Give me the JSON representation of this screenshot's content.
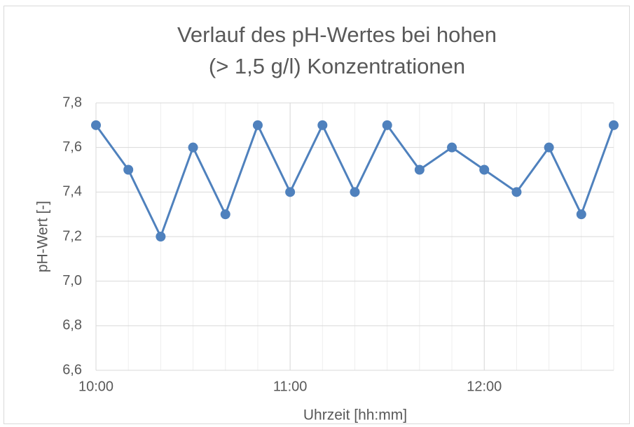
{
  "chart_data": {
    "type": "line",
    "title": [
      "Verlauf des pH-Wertes bei hohen",
      "(> 1,5 g/l) Konzentrationen"
    ],
    "xlabel": "Uhrzeit [hh:mm]",
    "ylabel": "pH-Wert [-]",
    "x": [
      600,
      610,
      620,
      630,
      640,
      650,
      660,
      670,
      680,
      690,
      700,
      710,
      720,
      730,
      740,
      750,
      760
    ],
    "series": [
      {
        "name": "pH-Wert",
        "color": "#4f81bd",
        "values": [
          7.7,
          7.5,
          7.2,
          7.6,
          7.3,
          7.7,
          7.4,
          7.7,
          7.4,
          7.7,
          7.5,
          7.6,
          7.5,
          7.4,
          7.6,
          7.3,
          7.7
        ]
      }
    ],
    "xlim": [
      600,
      760
    ],
    "xticks": [
      {
        "value": 600,
        "label": "10:00"
      },
      {
        "value": 660,
        "label": "11:00"
      },
      {
        "value": 720,
        "label": "12:00"
      }
    ],
    "ylim": [
      6.6,
      7.8
    ],
    "yticks": [
      {
        "value": 6.6,
        "label": "6,6"
      },
      {
        "value": 6.8,
        "label": "6,8"
      },
      {
        "value": 7.0,
        "label": "7,0"
      },
      {
        "value": 7.2,
        "label": "7,2"
      },
      {
        "value": 7.4,
        "label": "7,4"
      },
      {
        "value": 7.6,
        "label": "7,6"
      },
      {
        "value": 7.8,
        "label": "7,8"
      }
    ],
    "grid": true,
    "minor_grid": true
  }
}
